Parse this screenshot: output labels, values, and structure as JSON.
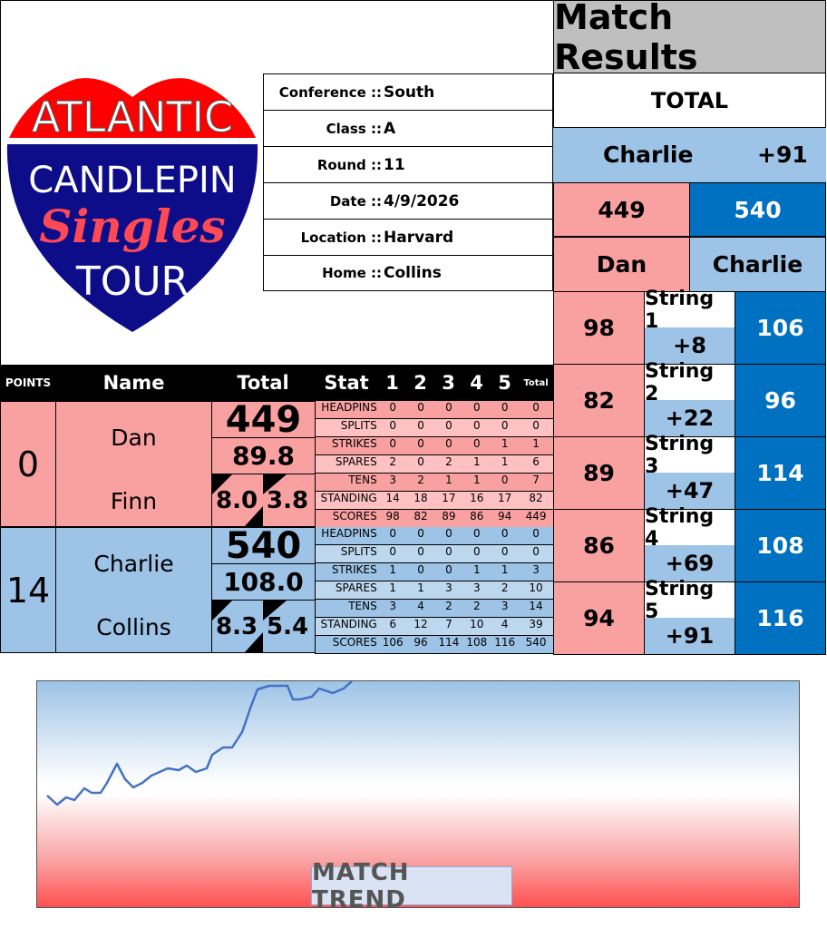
{
  "logo": {
    "line1": "ATLANTIC",
    "line2": "CANDLEPIN",
    "line3": "Singles",
    "line4": "TOUR"
  },
  "info": [
    {
      "label": "Conference ::",
      "value": "South"
    },
    {
      "label": "Class ::",
      "value": "A"
    },
    {
      "label": "Round ::",
      "value": "11"
    },
    {
      "label": "Date ::",
      "value": "4/9/2026"
    },
    {
      "label": "Location ::",
      "value": "Harvard"
    },
    {
      "label": "Home ::",
      "value": "Collins"
    }
  ],
  "table": {
    "headers": {
      "points": "POINTS",
      "name": "Name",
      "total": "Total",
      "stat": "Stat",
      "cols": [
        "1",
        "2",
        "3",
        "4",
        "5"
      ],
      "total_small": "Total"
    },
    "stat_labels": [
      "HEADPINS",
      "SPLITS",
      "STRIKES",
      "SPARES",
      "TENS",
      "STANDING",
      "SCORES"
    ],
    "teams": [
      {
        "points": "0",
        "player": "Dan",
        "opponent_label": "Finn",
        "total": "449",
        "average": "89.8",
        "stat_a": "8.0",
        "stat_b": "3.8",
        "stats": [
          [
            0,
            0,
            0,
            0,
            0,
            0
          ],
          [
            0,
            0,
            0,
            0,
            0,
            0
          ],
          [
            0,
            0,
            0,
            0,
            1,
            1
          ],
          [
            2,
            0,
            2,
            1,
            1,
            6
          ],
          [
            3,
            2,
            1,
            1,
            0,
            7
          ],
          [
            14,
            18,
            17,
            16,
            17,
            82
          ],
          [
            98,
            82,
            89,
            86,
            94,
            449
          ]
        ]
      },
      {
        "points": "14",
        "player": "Charlie",
        "opponent_label": "Collins",
        "total": "540",
        "average": "108.0",
        "stat_a": "8.3",
        "stat_b": "5.4",
        "stats": [
          [
            0,
            0,
            0,
            0,
            0,
            0
          ],
          [
            0,
            0,
            0,
            0,
            0,
            0
          ],
          [
            1,
            0,
            0,
            1,
            1,
            3
          ],
          [
            1,
            1,
            3,
            3,
            2,
            10
          ],
          [
            3,
            4,
            2,
            2,
            3,
            14
          ],
          [
            6,
            12,
            7,
            10,
            4,
            39
          ],
          [
            106,
            96,
            114,
            108,
            116,
            540
          ]
        ]
      }
    ]
  },
  "results": {
    "title": "Match Results",
    "total_label": "TOTAL",
    "leader": "Charlie",
    "margin": "+91",
    "score_left": "449",
    "score_right": "540",
    "name_left": "Dan",
    "name_right": "Charlie",
    "strings": [
      {
        "label": "String 1",
        "left": "98",
        "diff": "+8",
        "right": "106"
      },
      {
        "label": "String 2",
        "left": "82",
        "diff": "+22",
        "right": "96"
      },
      {
        "label": "String 3",
        "left": "89",
        "diff": "+47",
        "right": "114"
      },
      {
        "label": "String 4",
        "left": "86",
        "diff": "+69",
        "right": "108"
      },
      {
        "label": "String 5",
        "left": "94",
        "diff": "+91",
        "right": "116"
      }
    ]
  },
  "trend": {
    "title": "MATCH TREND",
    "line_color": "#4472c4"
  },
  "colors": {
    "pink": "#f9a1a1",
    "blue": "#9dc3e6",
    "dark_blue": "#0070c0"
  }
}
